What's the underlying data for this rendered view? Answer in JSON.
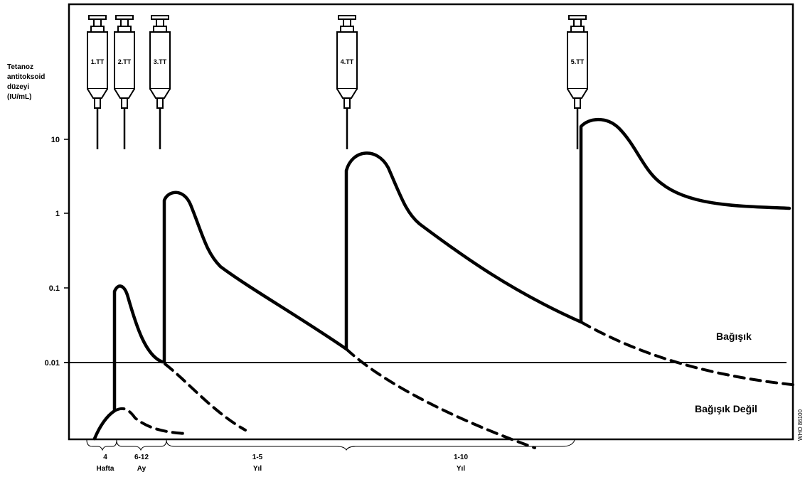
{
  "chart_data": {
    "type": "line",
    "ylabel_lines": [
      "Tetanoz",
      "antitoksoid",
      "düzeyi",
      "(IU/mL)"
    ],
    "yscale": "log",
    "yticks": [
      {
        "label": "10",
        "value": 10
      },
      {
        "label": "1",
        "value": 1
      },
      {
        "label": "0.1",
        "value": 0.1
      },
      {
        "label": "0.01",
        "value": 0.01
      }
    ],
    "threshold": 0.01,
    "zones": {
      "above": "Bağışık",
      "below": "Bağışık Değil"
    },
    "doses": [
      "1.TT",
      "2.TT",
      "3.TT",
      "4.TT",
      "5.TT"
    ],
    "intervals": [
      {
        "line1": "4",
        "line2": "Hafta"
      },
      {
        "line1": "6-12",
        "line2": "Ay"
      },
      {
        "line1": "1-5",
        "line2": "Yıl"
      },
      {
        "line1": "1-10",
        "line2": "Yıl"
      }
    ],
    "series": [
      {
        "values": [
          0.002,
          0.1,
          0.01,
          1.6,
          0.25,
          0.016,
          6.5,
          0.8,
          0.033,
          16,
          2.5,
          1.2
        ]
      },
      {
        "values": [
          0.0025,
          0.0012,
          0.007,
          0.0012,
          0.01,
          0.0015,
          0.033,
          0.005
        ]
      }
    ],
    "watermark": "WHO 86100"
  }
}
